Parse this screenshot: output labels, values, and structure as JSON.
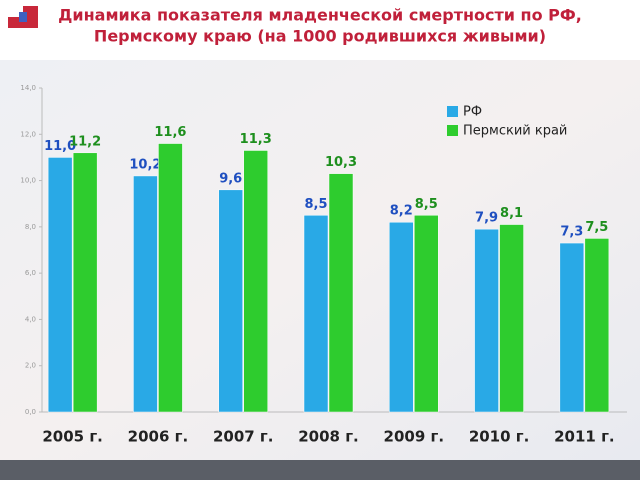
{
  "chart_data": {
    "type": "bar",
    "title": "Динамика показателя младенческой смертности по РФ,",
    "subtitle": "Пермскому краю (на 1000 родившихся живыми)",
    "categories": [
      "2005 г.",
      "2006 г.",
      "2007 г.",
      "2008 г.",
      "2009 г.",
      "2010 г.",
      "2011 г."
    ],
    "series": [
      {
        "name": "РФ",
        "color": "#29a9e6",
        "label_color": "#1f4fc0",
        "values": [
          11.0,
          10.2,
          9.6,
          8.5,
          8.2,
          7.9,
          7.3
        ],
        "value_labels": [
          "11,0",
          "10,2",
          "9,6",
          "8,5",
          "8,2",
          "7,9",
          "7,3"
        ]
      },
      {
        "name": "Пермский край",
        "color": "#2ecc2e",
        "label_color": "#1e8f1e",
        "values": [
          11.2,
          11.6,
          11.3,
          10.3,
          8.5,
          8.1,
          7.5
        ],
        "value_labels": [
          "11,2",
          "11,6",
          "11,3",
          "10,3",
          "8,5",
          "8,1",
          "7,5"
        ]
      }
    ],
    "ylim": [
      0,
      14
    ],
    "yticks": [
      {
        "value": 0,
        "label": "0,0"
      },
      {
        "value": 2,
        "label": "2,0"
      },
      {
        "value": 4,
        "label": "4,0"
      },
      {
        "value": 6,
        "label": "6,0"
      },
      {
        "value": 8,
        "label": "8,0"
      },
      {
        "value": 10,
        "label": "10,0"
      },
      {
        "value": 12,
        "label": "12,0"
      },
      {
        "value": 14,
        "label": "14,0"
      }
    ],
    "grid": false,
    "legend": "top-right"
  }
}
